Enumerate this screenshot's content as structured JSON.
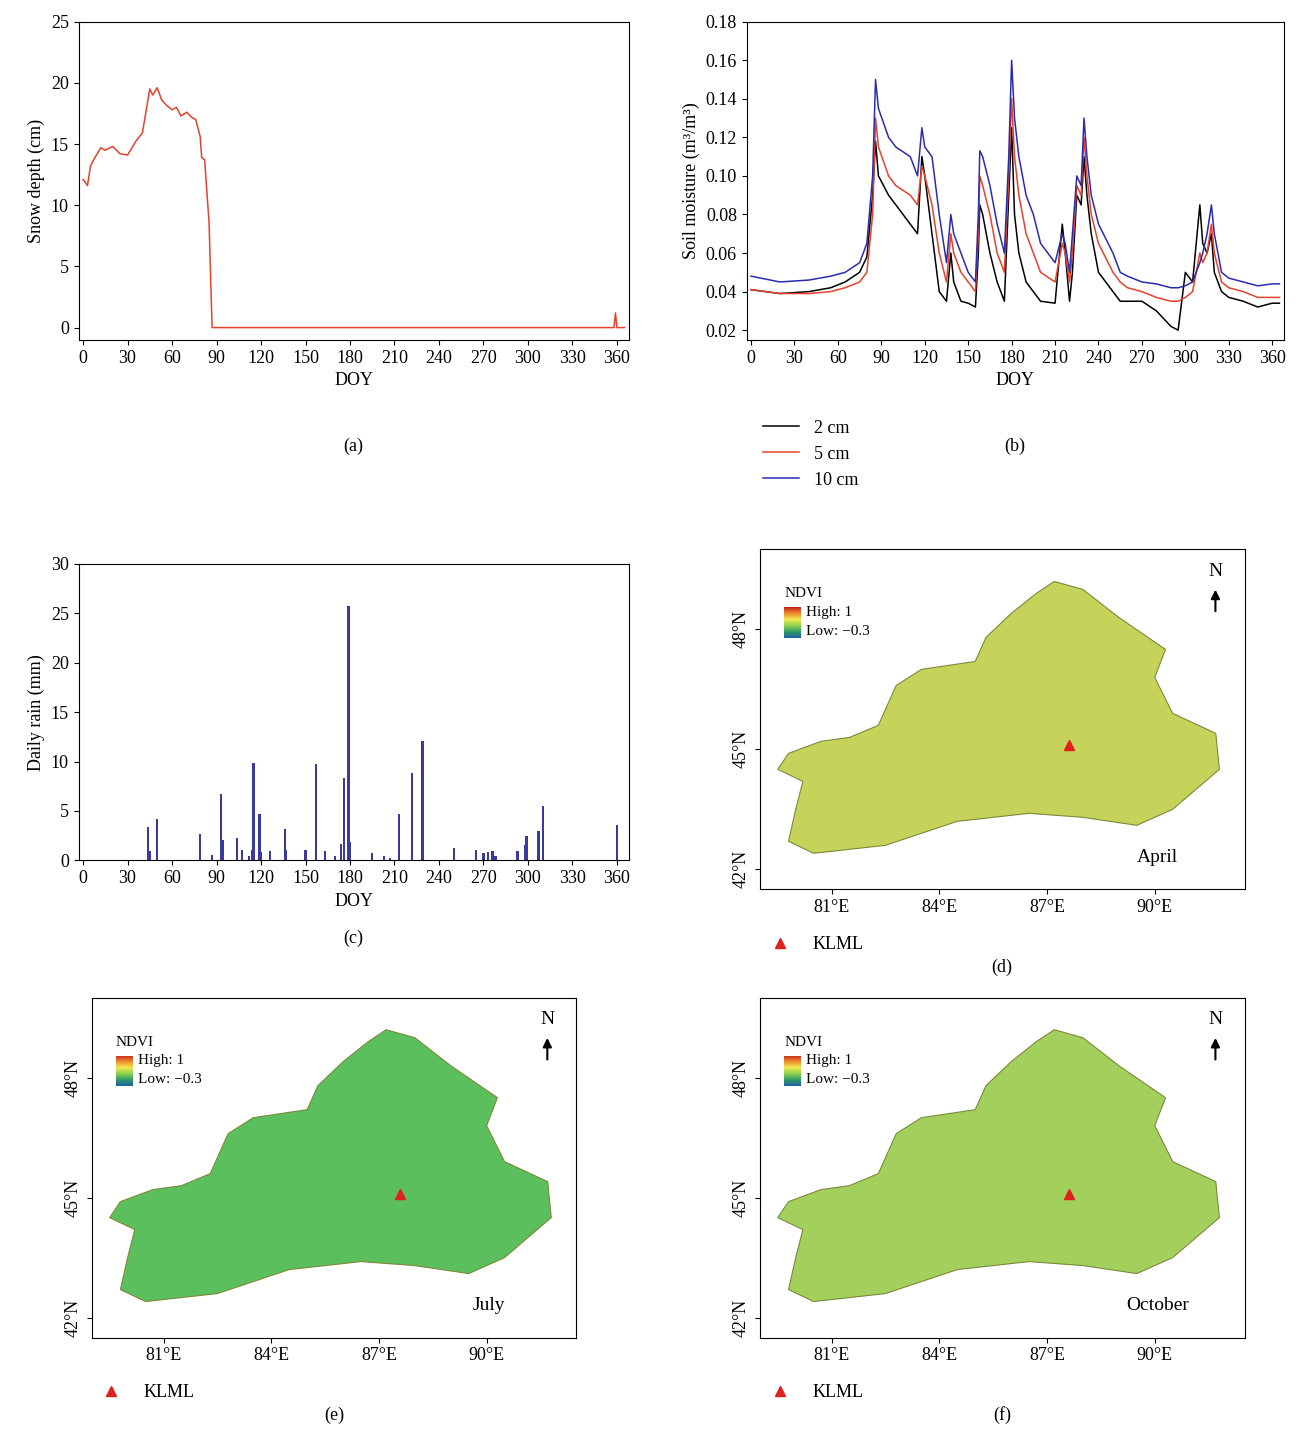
{
  "chart_data": [
    {
      "type": "line",
      "panel": "(a)",
      "xlabel": "DOY",
      "ylabel": "Snow depth (cm)",
      "x": [
        0,
        3,
        5,
        8,
        12,
        15,
        20,
        25,
        30,
        33,
        36,
        40,
        45,
        47,
        50,
        53,
        56,
        60,
        63,
        66,
        70,
        73,
        76,
        79,
        80,
        82,
        85,
        87,
        90,
        120,
        180,
        240,
        300,
        355,
        358,
        359,
        360,
        362,
        365
      ],
      "values": [
        12.1,
        11.6,
        13.2,
        13.9,
        14.7,
        14.5,
        14.8,
        14.2,
        14.1,
        14.7,
        15.3,
        15.9,
        19.5,
        19.0,
        19.6,
        18.6,
        18.2,
        17.8,
        18.0,
        17.3,
        17.6,
        17.2,
        17.0,
        15.6,
        13.9,
        13.7,
        8.5,
        0,
        0,
        0,
        0,
        0,
        0,
        0,
        0,
        1.2,
        0,
        0,
        0
      ],
      "color": "#e8412b",
      "xlim": [
        -3,
        368
      ],
      "ylim": [
        -1,
        25
      ],
      "xticks": [
        0,
        30,
        60,
        90,
        120,
        150,
        180,
        210,
        240,
        270,
        300,
        330,
        360
      ],
      "yticks": [
        0,
        5,
        10,
        15,
        20,
        25
      ]
    },
    {
      "type": "line",
      "panel": "(b)",
      "xlabel": "DOY",
      "ylabel": "Soil moisture (m³/m³)",
      "legend": "below",
      "x": [
        0,
        20,
        40,
        55,
        65,
        75,
        80,
        84,
        86,
        88,
        95,
        100,
        110,
        115,
        118,
        120,
        125,
        130,
        135,
        138,
        140,
        145,
        150,
        155,
        157,
        158,
        160,
        165,
        170,
        175,
        178,
        180,
        182,
        185,
        190,
        195,
        200,
        210,
        215,
        217,
        220,
        222,
        225,
        228,
        230,
        232,
        235,
        240,
        250,
        255,
        260,
        270,
        280,
        290,
        295,
        300,
        305,
        310,
        312,
        315,
        318,
        320,
        325,
        330,
        340,
        350,
        360,
        365
      ],
      "series": [
        {
          "name": "2 cm",
          "color": "#000000",
          "values": [
            0.041,
            0.039,
            0.04,
            0.042,
            0.045,
            0.05,
            0.058,
            0.09,
            0.118,
            0.1,
            0.09,
            0.085,
            0.075,
            0.07,
            0.11,
            0.1,
            0.07,
            0.04,
            0.035,
            0.06,
            0.045,
            0.035,
            0.034,
            0.032,
            0.06,
            0.085,
            0.08,
            0.06,
            0.045,
            0.035,
            0.09,
            0.125,
            0.08,
            0.06,
            0.045,
            0.04,
            0.035,
            0.034,
            0.075,
            0.06,
            0.035,
            0.05,
            0.09,
            0.085,
            0.11,
            0.09,
            0.07,
            0.05,
            0.04,
            0.035,
            0.035,
            0.035,
            0.03,
            0.022,
            0.02,
            0.05,
            0.045,
            0.085,
            0.065,
            0.06,
            0.07,
            0.05,
            0.04,
            0.037,
            0.035,
            0.032,
            0.034,
            0.034
          ]
        },
        {
          "name": "5 cm",
          "color": "#e8412b",
          "values": [
            0.041,
            0.039,
            0.039,
            0.04,
            0.042,
            0.045,
            0.05,
            0.08,
            0.13,
            0.115,
            0.1,
            0.095,
            0.09,
            0.085,
            0.105,
            0.1,
            0.085,
            0.06,
            0.045,
            0.07,
            0.06,
            0.05,
            0.045,
            0.04,
            0.07,
            0.1,
            0.095,
            0.08,
            0.06,
            0.05,
            0.1,
            0.14,
            0.11,
            0.09,
            0.07,
            0.06,
            0.05,
            0.045,
            0.065,
            0.06,
            0.045,
            0.06,
            0.095,
            0.09,
            0.12,
            0.1,
            0.08,
            0.065,
            0.05,
            0.045,
            0.042,
            0.04,
            0.037,
            0.035,
            0.035,
            0.037,
            0.04,
            0.06,
            0.055,
            0.06,
            0.075,
            0.06,
            0.045,
            0.042,
            0.04,
            0.037,
            0.037,
            0.037
          ]
        },
        {
          "name": "10 cm",
          "color": "#2b2bb0",
          "values": [
            0.048,
            0.045,
            0.046,
            0.048,
            0.05,
            0.055,
            0.065,
            0.1,
            0.15,
            0.135,
            0.12,
            0.115,
            0.11,
            0.1,
            0.125,
            0.115,
            0.11,
            0.08,
            0.055,
            0.08,
            0.07,
            0.06,
            0.05,
            0.045,
            0.08,
            0.113,
            0.11,
            0.095,
            0.075,
            0.06,
            0.11,
            0.16,
            0.13,
            0.11,
            0.09,
            0.08,
            0.065,
            0.055,
            0.07,
            0.065,
            0.05,
            0.07,
            0.1,
            0.095,
            0.13,
            0.11,
            0.09,
            0.075,
            0.06,
            0.05,
            0.048,
            0.045,
            0.044,
            0.042,
            0.042,
            0.043,
            0.045,
            0.055,
            0.06,
            0.07,
            0.085,
            0.07,
            0.05,
            0.047,
            0.045,
            0.043,
            0.044,
            0.044
          ]
        }
      ],
      "xlim": [
        -3,
        368
      ],
      "ylim": [
        0.015,
        0.18
      ],
      "xticks": [
        0,
        30,
        60,
        90,
        120,
        150,
        180,
        210,
        240,
        270,
        300,
        330,
        360
      ],
      "yticks": [
        0.02,
        0.04,
        0.06,
        0.08,
        {
          "value": 0.1,
          "label": "0.10"
        },
        0.12,
        0.14,
        0.16,
        0.18
      ]
    },
    {
      "type": "bar",
      "panel": "(c)",
      "xlabel": "DOY",
      "ylabel": "Daily rain (mm)",
      "color": "#3a3a9e",
      "x": [
        44,
        45,
        50,
        79,
        87,
        93,
        94,
        104,
        107,
        112,
        114,
        115,
        119,
        120,
        126,
        136,
        137,
        150,
        157,
        163,
        170,
        174,
        176,
        179,
        180,
        195,
        203,
        207,
        213,
        222,
        229,
        250,
        265,
        270,
        273,
        276,
        278,
        293,
        298,
        299,
        307,
        310,
        360
      ],
      "values": [
        3.4,
        0.9,
        4.2,
        2.7,
        0.5,
        6.7,
        2.1,
        2.3,
        1.1,
        0.4,
        1.0,
        9.9,
        4.7,
        0.8,
        0.9,
        3.2,
        1.0,
        1.0,
        9.8,
        0.9,
        0.4,
        1.7,
        8.3,
        25.7,
        1.9,
        0.7,
        0.4,
        0.2,
        4.7,
        8.8,
        12.1,
        1.3,
        1.1,
        0.7,
        0.8,
        0.9,
        0.4,
        0.9,
        1.6,
        2.5,
        3.0,
        5.5,
        3.6
      ],
      "xlim": [
        -3,
        368
      ],
      "ylim": [
        0,
        30
      ],
      "xticks": [
        0,
        30,
        60,
        90,
        120,
        150,
        180,
        210,
        240,
        270,
        300,
        330,
        360
      ],
      "yticks": [
        0,
        5,
        10,
        15,
        20,
        25,
        30
      ]
    },
    {
      "type": "map",
      "panel": "(d)",
      "title": "April",
      "color": "#c6d35a",
      "legend": "below",
      "colorbar_title": "NDVI",
      "colorbar_range": [
        -0.3,
        1
      ],
      "colorbar_labels": [
        "High: 1",
        "Low: −0.3"
      ],
      "north_label": "N",
      "points": [
        {
          "name": "KLML",
          "x": 87.6,
          "y": 45.1,
          "color": "#e0201b",
          "marker": "^"
        }
      ],
      "xlim": [
        79,
        92.5
      ],
      "ylim": [
        41.5,
        50
      ],
      "xticks": [
        {
          "value": 81,
          "label": "81°E"
        },
        {
          "value": 84,
          "label": "84°E"
        },
        {
          "value": 87,
          "label": "87°E"
        },
        {
          "value": 90,
          "label": "90°E"
        }
      ],
      "yticks": [
        {
          "value": 42,
          "label": "42°N"
        },
        {
          "value": 45,
          "label": "45°N"
        },
        {
          "value": 48,
          "label": "48°N"
        }
      ]
    },
    {
      "type": "map",
      "panel": "(e)",
      "title": "July",
      "color": "#5cbf5e",
      "legend": "below",
      "colorbar_title": "NDVI",
      "colorbar_range": [
        -0.3,
        1
      ],
      "colorbar_labels": [
        "High: 1",
        "Low: −0.3"
      ],
      "north_label": "N",
      "points": [
        {
          "name": "KLML",
          "x": 87.6,
          "y": 45.1,
          "color": "#e0201b",
          "marker": "^"
        }
      ],
      "xlim": [
        79,
        92.5
      ],
      "ylim": [
        41.5,
        50
      ],
      "xticks": [
        {
          "value": 81,
          "label": "81°E"
        },
        {
          "value": 84,
          "label": "84°E"
        },
        {
          "value": 87,
          "label": "87°E"
        },
        {
          "value": 90,
          "label": "90°E"
        }
      ],
      "yticks": [
        {
          "value": 42,
          "label": "42°N"
        },
        {
          "value": 45,
          "label": "45°N"
        },
        {
          "value": 48,
          "label": "48°N"
        }
      ]
    },
    {
      "type": "map",
      "panel": "(f)",
      "title": "October",
      "color": "#a3d05c",
      "legend": "below",
      "colorbar_title": "NDVI",
      "colorbar_range": [
        -0.3,
        1
      ],
      "colorbar_labels": [
        "High: 1",
        "Low: −0.3"
      ],
      "north_label": "N",
      "points": [
        {
          "name": "KLML",
          "x": 87.6,
          "y": 45.1,
          "color": "#e0201b",
          "marker": "^"
        }
      ],
      "xlim": [
        79,
        92.5
      ],
      "ylim": [
        41.5,
        50
      ],
      "xticks": [
        {
          "value": 81,
          "label": "81°E"
        },
        {
          "value": 84,
          "label": "84°E"
        },
        {
          "value": 87,
          "label": "87°E"
        },
        {
          "value": 90,
          "label": "90°E"
        }
      ],
      "yticks": [
        {
          "value": 42,
          "label": "42°N"
        },
        {
          "value": 45,
          "label": "45°N"
        },
        {
          "value": 48,
          "label": "48°N"
        }
      ]
    }
  ]
}
